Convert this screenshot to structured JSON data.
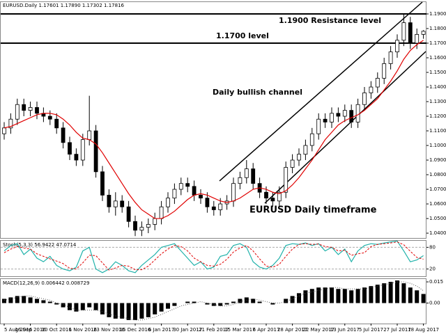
{
  "chart_data": [
    {
      "type": "candlestick",
      "title": "EURUSD.Daily  1.17601 1.17890 1.17302 1.17816",
      "color": "#000000",
      "categories": [
        "5 Aug 2016",
        null,
        null,
        null,
        "16 Sep 2016",
        null,
        null,
        null,
        "10 Oct 2016",
        null,
        null,
        null,
        "1 Nov 2016",
        null,
        null,
        null,
        "23 Nov 2016",
        null,
        null,
        null,
        "15 Dec 2016",
        null,
        null,
        null,
        "6 Jan 2017",
        null,
        null,
        null,
        "30 Jan 2017",
        null,
        null,
        null,
        "21 Feb 2017",
        null,
        null,
        null,
        "15 Mar 2017",
        null,
        null,
        null,
        "6 Apr 2017",
        null,
        null,
        null,
        "28 Apr 2017",
        null,
        null,
        null,
        "22 May 2017",
        null,
        null,
        null,
        "13 Jun 2017",
        null,
        null,
        null,
        "5 Jul 2017",
        null,
        null,
        null,
        "27 Jul 2017",
        null,
        null,
        null,
        "18 Aug 2017"
      ],
      "open": [
        1.108,
        1.112,
        1.118,
        1.128,
        1.124,
        1.126,
        1.122,
        1.12,
        1.118,
        1.112,
        1.102,
        1.094,
        1.09,
        1.104,
        1.11,
        1.082,
        1.066,
        1.058,
        1.062,
        1.058,
        1.048,
        1.042,
        1.044,
        1.046,
        1.05,
        1.058,
        1.064,
        1.07,
        1.074,
        1.072,
        1.066,
        1.064,
        1.058,
        1.056,
        1.06,
        1.062,
        1.074,
        1.078,
        1.084,
        1.074,
        1.068,
        1.064,
        1.062,
        1.068,
        1.085,
        1.09,
        1.094,
        1.1,
        1.108,
        1.118,
        1.116,
        1.122,
        1.12,
        1.124,
        1.116,
        1.128,
        1.136,
        1.14,
        1.146,
        1.156,
        1.164,
        1.172,
        1.184,
        1.17,
        1.17601
      ],
      "high": [
        1.116,
        1.122,
        1.132,
        1.132,
        1.13,
        1.13,
        1.126,
        1.124,
        1.122,
        1.116,
        1.106,
        1.098,
        1.108,
        1.134,
        1.114,
        1.086,
        1.07,
        1.068,
        1.066,
        1.062,
        1.052,
        1.048,
        1.05,
        1.054,
        1.062,
        1.068,
        1.074,
        1.078,
        1.078,
        1.076,
        1.07,
        1.068,
        1.062,
        1.064,
        1.066,
        1.078,
        1.082,
        1.09,
        1.088,
        1.078,
        1.072,
        1.068,
        1.072,
        1.089,
        1.094,
        1.098,
        1.104,
        1.112,
        1.122,
        1.122,
        1.126,
        1.126,
        1.128,
        1.128,
        1.132,
        1.14,
        1.144,
        1.15,
        1.16,
        1.168,
        1.176,
        1.19,
        1.188,
        1.18,
        1.1789
      ],
      "low": [
        1.104,
        1.108,
        1.114,
        1.12,
        1.12,
        1.118,
        1.116,
        1.114,
        1.108,
        1.098,
        1.09,
        1.086,
        1.086,
        1.1,
        1.078,
        1.062,
        1.054,
        1.052,
        1.054,
        1.044,
        1.038,
        1.038,
        1.04,
        1.042,
        1.046,
        1.054,
        1.06,
        1.066,
        1.068,
        1.062,
        1.06,
        1.054,
        1.052,
        1.052,
        1.056,
        1.058,
        1.07,
        1.074,
        1.07,
        1.064,
        1.06,
        1.058,
        1.058,
        1.064,
        1.081,
        1.086,
        1.09,
        1.096,
        1.104,
        1.112,
        1.112,
        1.116,
        1.116,
        1.112,
        1.112,
        1.124,
        1.132,
        1.136,
        1.142,
        1.152,
        1.16,
        1.168,
        1.166,
        1.166,
        1.17302
      ],
      "close": [
        1.112,
        1.118,
        1.128,
        1.124,
        1.126,
        1.122,
        1.12,
        1.118,
        1.112,
        1.102,
        1.094,
        1.09,
        1.104,
        1.11,
        1.082,
        1.066,
        1.058,
        1.062,
        1.058,
        1.048,
        1.042,
        1.044,
        1.046,
        1.05,
        1.058,
        1.064,
        1.07,
        1.074,
        1.072,
        1.066,
        1.064,
        1.058,
        1.056,
        1.06,
        1.062,
        1.074,
        1.078,
        1.084,
        1.074,
        1.068,
        1.064,
        1.062,
        1.068,
        1.085,
        1.09,
        1.094,
        1.1,
        1.108,
        1.118,
        1.116,
        1.122,
        1.12,
        1.124,
        1.116,
        1.128,
        1.136,
        1.14,
        1.146,
        1.156,
        1.164,
        1.172,
        1.184,
        1.17,
        1.17601,
        1.17816
      ],
      "series": [
        {
          "color": "#e00000",
          "style": "line",
          "values": [
            1.112,
            1.113,
            1.115,
            1.117,
            1.119,
            1.121,
            1.122,
            1.122,
            1.121,
            1.118,
            1.114,
            1.109,
            1.105,
            1.104,
            1.101,
            1.095,
            1.088,
            1.081,
            1.074,
            1.067,
            1.061,
            1.056,
            1.053,
            1.05,
            1.05,
            1.052,
            1.055,
            1.059,
            1.063,
            1.066,
            1.067,
            1.066,
            1.064,
            1.062,
            1.061,
            1.062,
            1.064,
            1.067,
            1.07,
            1.071,
            1.07,
            1.068,
            1.067,
            1.069,
            1.073,
            1.078,
            1.084,
            1.09,
            1.097,
            1.104,
            1.109,
            1.114,
            1.117,
            1.119,
            1.121,
            1.124,
            1.128,
            1.132,
            1.138,
            1.144,
            1.151,
            1.159,
            1.165,
            1.169,
            1.172
          ]
        }
      ],
      "ylim": [
        1.0367,
        1.1981
      ],
      "yticks": [
        {
          "value": 1.19,
          "label": "1.1900"
        },
        {
          "value": 1.18,
          "label": "1.1800"
        },
        {
          "value": 1.17,
          "label": "1.1700"
        },
        {
          "value": 1.16,
          "label": "1.1600"
        },
        {
          "value": 1.15,
          "label": "1.1500"
        },
        {
          "value": 1.14,
          "label": "1.1400"
        },
        {
          "value": 1.13,
          "label": "1.1300"
        },
        {
          "value": 1.12,
          "label": "1.1200"
        },
        {
          "value": 1.11,
          "label": "1.1100"
        },
        {
          "value": 1.1,
          "label": "1.1000"
        },
        {
          "value": 1.09,
          "label": "1.0900"
        },
        {
          "value": 1.08,
          "label": "1.0800"
        },
        {
          "value": 1.07,
          "label": "1.0700"
        },
        {
          "value": 1.06,
          "label": "1.0600"
        },
        {
          "value": 1.05,
          "label": "1.0500"
        },
        {
          "value": 1.04,
          "label": "1.0400"
        }
      ],
      "hlines": [
        1.19,
        1.17
      ],
      "annotations": [
        "1.1900 Resistance level",
        "1.1700 level",
        "Daily bullish channel",
        "EURUSD Daily timeframe"
      ]
    },
    {
      "type": "line",
      "title": "Stoch(5,3,3) 56.9422 47.0714",
      "series": [
        {
          "color": "#20b2aa",
          "style": "line",
          "values": [
            70,
            85,
            90,
            60,
            75,
            50,
            40,
            55,
            30,
            20,
            15,
            25,
            70,
            80,
            20,
            10,
            20,
            40,
            30,
            15,
            10,
            30,
            45,
            60,
            80,
            85,
            90,
            70,
            50,
            30,
            40,
            20,
            25,
            55,
            60,
            85,
            90,
            80,
            40,
            25,
            20,
            30,
            50,
            85,
            90,
            88,
            92,
            85,
            90,
            70,
            80,
            60,
            75,
            40,
            70,
            85,
            90,
            88,
            92,
            95,
            97,
            70,
            40,
            45,
            56.9422
          ]
        },
        {
          "color": "#e00000",
          "style": "dashed",
          "values": [
            65,
            75,
            82,
            78,
            75,
            62,
            55,
            48,
            42,
            35,
            22,
            20,
            37,
            58,
            57,
            37,
            17,
            23,
            30,
            28,
            18,
            18,
            28,
            45,
            62,
            75,
            85,
            82,
            70,
            50,
            40,
            30,
            28,
            33,
            47,
            67,
            78,
            85,
            70,
            48,
            28,
            25,
            33,
            55,
            75,
            88,
            90,
            88,
            89,
            82,
            80,
            70,
            72,
            58,
            62,
            65,
            82,
            88,
            90,
            92,
            95,
            87,
            69,
            52,
            47.0714
          ]
        }
      ],
      "ylim": [
        0,
        100
      ],
      "yticks": [
        80,
        20
      ]
    },
    {
      "type": "bar",
      "title": "MACD(12,26,9) 0.006442 0.008729",
      "series": [
        {
          "color": "#000000",
          "style": "bar",
          "values": [
            0.003,
            0.004,
            0.005,
            0.005,
            0.004,
            0.003,
            0.002,
            0.001,
            -0.001,
            -0.003,
            -0.005,
            -0.006,
            -0.005,
            -0.003,
            -0.005,
            -0.008,
            -0.01,
            -0.011,
            -0.011,
            -0.012,
            -0.012,
            -0.011,
            -0.01,
            -0.008,
            -0.006,
            -0.004,
            -0.002,
            0.0,
            0.001,
            0.001,
            0.0,
            -0.001,
            -0.002,
            -0.002,
            -0.001,
            0.001,
            0.003,
            0.004,
            0.003,
            0.001,
            0.0,
            -0.001,
            0.0,
            0.003,
            0.005,
            0.007,
            0.009,
            0.01,
            0.011,
            0.011,
            0.011,
            0.01,
            0.01,
            0.009,
            0.01,
            0.011,
            0.012,
            0.013,
            0.014,
            0.015,
            0.016,
            0.014,
            0.011,
            0.009,
            0.006442
          ]
        },
        {
          "color": "#555555",
          "style": "dotted",
          "values": [
            0.002,
            0.003,
            0.004,
            0.005,
            0.005,
            0.004,
            0.003,
            0.002,
            0.0,
            -0.001,
            -0.003,
            -0.005,
            -0.005,
            -0.005,
            -0.005,
            -0.006,
            -0.008,
            -0.009,
            -0.01,
            -0.011,
            -0.012,
            -0.012,
            -0.011,
            -0.01,
            -0.008,
            -0.006,
            -0.004,
            -0.002,
            -0.001,
            0.0,
            0.001,
            0.0,
            -0.001,
            -0.002,
            -0.002,
            -0.001,
            0.001,
            0.002,
            0.003,
            0.002,
            0.001,
            0.0,
            0.0,
            0.001,
            0.003,
            0.005,
            0.007,
            0.008,
            0.009,
            0.01,
            0.011,
            0.011,
            0.01,
            0.01,
            0.01,
            0.01,
            0.011,
            0.012,
            0.013,
            0.014,
            0.015,
            0.015,
            0.014,
            0.012,
            0.008729
          ]
        }
      ],
      "ylim": [
        -0.0145,
        0.0175
      ],
      "yticks": [
        0.015,
        {
          "value": 0,
          "label": "0.00"
        }
      ]
    }
  ]
}
